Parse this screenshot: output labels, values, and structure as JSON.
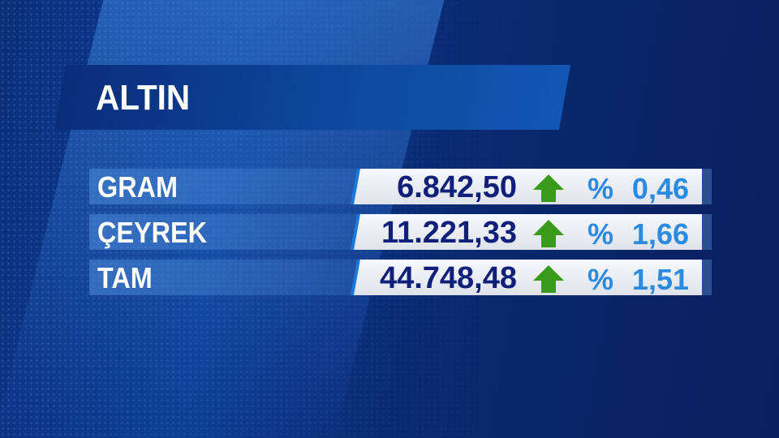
{
  "title": "ALTIN",
  "colors": {
    "value_text": "#10207a",
    "change_text": "#2b8be0",
    "up_arrow": "#3a9a1a",
    "background": "#0a2a72"
  },
  "rows": [
    {
      "label": "GRAM",
      "price": "6.842,50",
      "direction": "up-arrow-icon",
      "percent_sign": "%",
      "change": "0,46"
    },
    {
      "label": "ÇEYREK",
      "price": "11.221,33",
      "direction": "up-arrow-icon",
      "percent_sign": "%",
      "change": "1,66"
    },
    {
      "label": "TAM",
      "price": "44.748,48",
      "direction": "up-arrow-icon",
      "percent_sign": "%",
      "change": "1,51"
    }
  ]
}
